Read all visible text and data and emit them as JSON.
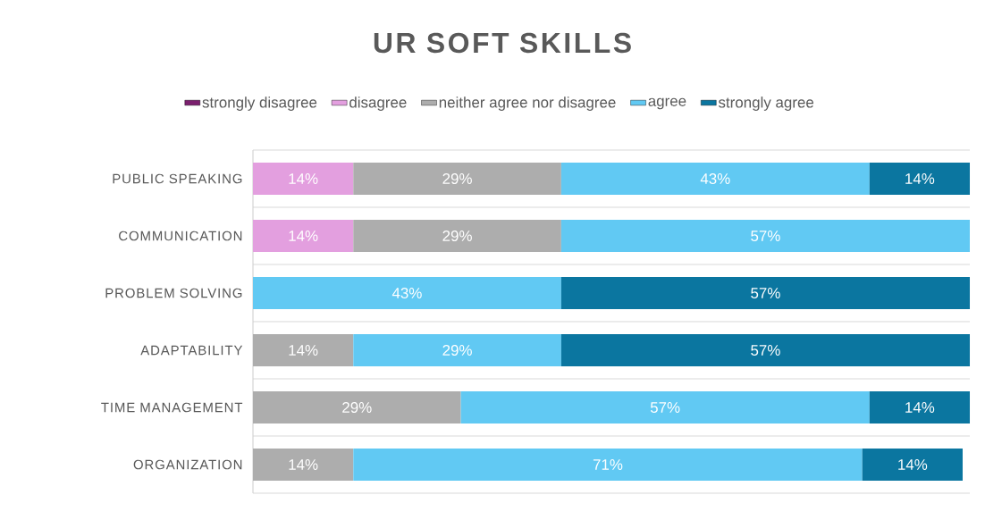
{
  "chart_data": {
    "type": "bar",
    "orientation": "horizontal",
    "stacked": true,
    "title": "UR SOFT SKILLS",
    "categories": [
      "PUBLIC SPEAKING",
      "COMMUNICATION",
      "PROBLEM SOLVING",
      "ADAPTABILITY",
      "TIME MANAGEMENT",
      "ORGANIZATION"
    ],
    "series": [
      {
        "name": "strongly disagree",
        "color": "#7b1f6e",
        "values": [
          null,
          null,
          null,
          null,
          null,
          null
        ],
        "value_labels": [
          null,
          null,
          null,
          null,
          null,
          null
        ]
      },
      {
        "name": "disagree",
        "color": "#e39fdf",
        "values": [
          14,
          14,
          null,
          null,
          null,
          null
        ],
        "value_labels": [
          "14%",
          "14%",
          null,
          null,
          null,
          null
        ]
      },
      {
        "name": "neither agree nor disagree",
        "color": "#adadad",
        "values": [
          29,
          29,
          null,
          14,
          29,
          14
        ],
        "value_labels": [
          "29%",
          "29%",
          null,
          "14%",
          "29%",
          "14%"
        ]
      },
      {
        "name": "agree",
        "color": "#61c9f3",
        "values": [
          43,
          57,
          43,
          29,
          57,
          71
        ],
        "value_labels": [
          "43%",
          "57%",
          "43%",
          "29%",
          "57%",
          "71%"
        ]
      },
      {
        "name": "strongly agree",
        "color": "#0b76a0",
        "values": [
          14,
          null,
          57,
          57,
          14,
          14
        ],
        "value_labels": [
          "14%",
          null,
          "57%",
          "57%",
          "14%",
          "14%"
        ]
      }
    ],
    "grid": "y",
    "legend": "top"
  }
}
